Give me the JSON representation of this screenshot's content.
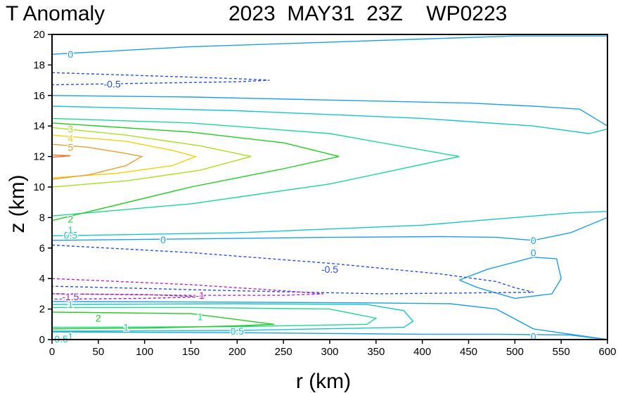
{
  "chart_data": {
    "type": "contour",
    "title_left": "T Anomaly",
    "title_right": "2023  MAY31  23Z    WP0223",
    "xlabel": "r (km)",
    "ylabel": "z (km)",
    "xlim": [
      0,
      600
    ],
    "ylim": [
      0,
      20
    ],
    "x_ticks": [
      "0",
      "50",
      "100",
      "150",
      "200",
      "250",
      "300",
      "350",
      "400",
      "450",
      "500",
      "550",
      "600"
    ],
    "y_ticks": [
      "0",
      "2",
      "4",
      "6",
      "8",
      "10",
      "12",
      "14",
      "16",
      "18",
      "20"
    ],
    "grid": false,
    "levels": [
      {
        "value": 0,
        "color": "#1e9ee6",
        "dashed": false,
        "label": "0",
        "paths": [
          [
            [
              0,
              18.7
            ],
            [
              60,
              18.9
            ],
            [
              150,
              19.2
            ],
            [
              300,
              19.5
            ],
            [
              400,
              19.7
            ],
            [
              500,
              19.9
            ],
            [
              600,
              19.9
            ]
          ],
          [
            [
              0,
              16.0
            ],
            [
              150,
              15.9
            ],
            [
              300,
              15.7
            ],
            [
              450,
              15.5
            ],
            [
              520,
              15.3
            ],
            [
              570,
              15.1
            ],
            [
              600,
              14.0
            ]
          ],
          [
            [
              0,
              6.5
            ],
            [
              150,
              6.6
            ],
            [
              300,
              6.7
            ],
            [
              420,
              6.75
            ],
            [
              480,
              6.7
            ],
            [
              520,
              6.5
            ],
            [
              560,
              7.0
            ],
            [
              600,
              8.0
            ]
          ],
          [
            [
              600,
              0
            ],
            [
              560,
              0.3
            ],
            [
              480,
              0.35
            ],
            [
              400,
              0.35
            ],
            [
              300,
              0.4
            ],
            [
              200,
              0.45
            ],
            [
              0,
              0.5
            ]
          ],
          [
            [
              440,
              3.9
            ],
            [
              470,
              4.6
            ],
            [
              520,
              5.4
            ],
            [
              545,
              5.3
            ],
            [
              550,
              4.0
            ],
            [
              540,
              3.0
            ],
            [
              500,
              2.7
            ],
            [
              460,
              3.4
            ],
            [
              440,
              3.9
            ]
          ],
          [
            [
              0,
              2.5
            ],
            [
              200,
              2.45
            ],
            [
              350,
              2.4
            ],
            [
              430,
              2.35
            ],
            [
              480,
              2.0
            ],
            [
              520,
              0.7
            ],
            [
              600,
              0
            ]
          ]
        ],
        "labels_at": [
          [
            20,
            18.7
          ],
          [
            120,
            6.55
          ],
          [
            520,
            6.5
          ],
          [
            520,
            5.7
          ],
          [
            520,
            0.2
          ]
        ]
      },
      {
        "value": 0.5,
        "color": "#18c4c8",
        "dashed": false,
        "label": "0.5",
        "paths": [
          [
            [
              0,
              15.3
            ],
            [
              200,
              15.0
            ],
            [
              400,
              14.5
            ],
            [
              520,
              14.0
            ],
            [
              580,
              13.5
            ],
            [
              600,
              13.8
            ]
          ],
          [
            [
              600,
              8.4
            ],
            [
              560,
              8.3
            ],
            [
              480,
              7.9
            ],
            [
              400,
              7.5
            ],
            [
              200,
              7.0
            ],
            [
              0,
              6.8
            ]
          ],
          [
            [
              0,
              2.3
            ],
            [
              200,
              2.35
            ],
            [
              340,
              2.3
            ],
            [
              380,
              1.9
            ],
            [
              390,
              1.2
            ],
            [
              380,
              0.8
            ],
            [
              200,
              0.6
            ],
            [
              0,
              0.55
            ]
          ]
        ],
        "labels_at": [
          [
            20,
            6.85
          ],
          [
            200,
            0.55
          ],
          [
            10,
            0.05
          ]
        ]
      },
      {
        "value": 1,
        "color": "#1ed890",
        "dashed": false,
        "label": "1",
        "paths": [
          [
            [
              0,
              14.5
            ],
            [
              150,
              14.2
            ],
            [
              300,
              13.5
            ],
            [
              440,
              12.0
            ],
            [
              300,
              10.2
            ],
            [
              150,
              8.9
            ],
            [
              0,
              8.1
            ]
          ],
          [
            [
              0,
              2.1
            ],
            [
              150,
              2.1
            ],
            [
              300,
              2.0
            ],
            [
              350,
              1.4
            ],
            [
              340,
              1.0
            ],
            [
              200,
              0.85
            ],
            [
              0,
              0.8
            ]
          ]
        ],
        "labels_at": [
          [
            20,
            7.2
          ],
          [
            20,
            2.3
          ],
          [
            160,
            1.5
          ],
          [
            80,
            0.8
          ],
          [
            20,
            0.2
          ]
        ]
      },
      {
        "value": 2,
        "color": "#22cc22",
        "dashed": false,
        "label": "2",
        "paths": [
          [
            [
              0,
              14.2
            ],
            [
              150,
              13.6
            ],
            [
              250,
              12.9
            ],
            [
              310,
              12.0
            ],
            [
              250,
              11.2
            ],
            [
              150,
              10.0
            ],
            [
              0,
              7.8
            ]
          ],
          [
            [
              0,
              1.8
            ],
            [
              150,
              1.7
            ],
            [
              240,
              1.0
            ],
            [
              200,
              0.9
            ],
            [
              100,
              0.75
            ],
            [
              0,
              0.7
            ]
          ]
        ],
        "labels_at": [
          [
            20,
            7.9
          ],
          [
            50,
            1.4
          ]
        ]
      },
      {
        "value": 3,
        "color": "#a8e024",
        "dashed": false,
        "label": "3",
        "paths": [
          [
            [
              0,
              13.9
            ],
            [
              80,
              13.4
            ],
            [
              160,
              12.7
            ],
            [
              215,
              12.0
            ],
            [
              160,
              11.1
            ],
            [
              80,
              10.4
            ],
            [
              0,
              10.0
            ]
          ]
        ],
        "labels_at": [
          [
            20,
            13.8
          ]
        ]
      },
      {
        "value": 4,
        "color": "#f0d214",
        "dashed": false,
        "label": "4",
        "paths": [
          [
            [
              0,
              13.4
            ],
            [
              80,
              13.0
            ],
            [
              130,
              12.4
            ],
            [
              155,
              12.0
            ],
            [
              130,
              11.4
            ],
            [
              70,
              10.9
            ],
            [
              0,
              10.6
            ]
          ]
        ],
        "labels_at": [
          [
            20,
            13.2
          ]
        ]
      },
      {
        "value": 5,
        "color": "#e6a032",
        "dashed": false,
        "label": "5",
        "paths": [
          [
            [
              0,
              12.8
            ],
            [
              40,
              12.6
            ],
            [
              80,
              12.2
            ],
            [
              97,
              12.0
            ],
            [
              80,
              11.4
            ],
            [
              40,
              10.8
            ],
            [
              0,
              10.5
            ]
          ]
        ],
        "labels_at": [
          [
            20,
            12.6
          ]
        ]
      },
      {
        "value": 6,
        "color": "#e67828",
        "dashed": false,
        "label": "6",
        "paths": [
          [
            [
              0,
              12.1
            ],
            [
              20,
              12.05
            ],
            [
              0,
              11.95
            ]
          ]
        ],
        "labels_at": []
      },
      {
        "value": -0.5,
        "color": "#2850e6",
        "dashed": true,
        "label": "-0.5",
        "paths": [
          [
            [
              0,
              17.5
            ],
            [
              100,
              17.3
            ],
            [
              200,
              17.1
            ],
            [
              235,
              17.0
            ],
            [
              200,
              16.9
            ],
            [
              100,
              16.8
            ],
            [
              0,
              16.7
            ]
          ],
          [
            [
              0,
              6.2
            ],
            [
              150,
              5.7
            ],
            [
              300,
              5.0
            ],
            [
              420,
              4.3
            ],
            [
              480,
              3.8
            ],
            [
              500,
              3.4
            ],
            [
              520,
              3.1
            ],
            [
              355,
              3.0
            ],
            [
              200,
              3.2
            ],
            [
              0,
              3.5
            ]
          ]
        ],
        "labels_at": [
          [
            65,
            16.75
          ],
          [
            300,
            4.6
          ]
        ]
      },
      {
        "value": -1,
        "color": "#b428c8",
        "dashed": true,
        "label": "-1",
        "paths": [
          [
            [
              0,
              4.0
            ],
            [
              150,
              3.6
            ],
            [
              250,
              3.2
            ],
            [
              293,
              3.0
            ],
            [
              250,
              2.9
            ],
            [
              150,
              2.9
            ],
            [
              0,
              3.0
            ]
          ]
        ],
        "labels_at": [
          [
            160,
            2.9
          ]
        ]
      },
      {
        "value": -1.5,
        "color": "#9a28b4",
        "dashed": true,
        "label": "-1.5",
        "paths": [
          [
            [
              0,
              3.0
            ],
            [
              100,
              2.95
            ],
            [
              165,
              2.8
            ],
            [
              100,
              2.7
            ],
            [
              0,
              2.65
            ]
          ]
        ],
        "labels_at": [
          [
            20,
            2.8
          ]
        ]
      }
    ]
  }
}
